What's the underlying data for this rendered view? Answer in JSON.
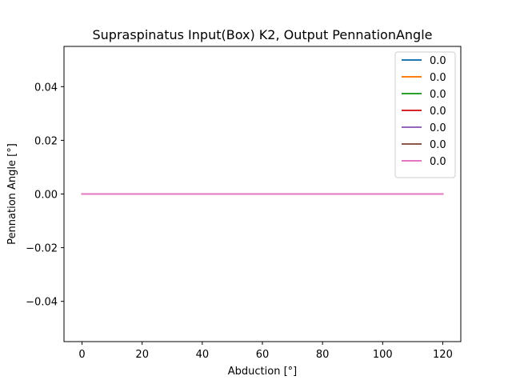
{
  "chart_data": {
    "type": "line",
    "title": "Supraspinatus Input(Box) K2, Output PennationAngle",
    "xlabel": "Abduction [°]",
    "ylabel": "Pennation Angle [°]",
    "xlim": [
      -6,
      126
    ],
    "ylim": [
      -0.055,
      0.055
    ],
    "x_ticks": [
      0,
      20,
      40,
      60,
      80,
      100,
      120
    ],
    "y_ticks": [
      -0.04,
      -0.02,
      0.0,
      0.02,
      0.04
    ],
    "x_tick_labels": [
      "0",
      "20",
      "40",
      "60",
      "80",
      "100",
      "120"
    ],
    "y_tick_labels": [
      "−0.04",
      "−0.02",
      "0.00",
      "0.02",
      "0.04"
    ],
    "grid": false,
    "legend_position": "top-right",
    "series": [
      {
        "name": "0.0",
        "color": "#1f77b4",
        "x": [
          0,
          120
        ],
        "y": [
          0,
          0
        ]
      },
      {
        "name": "0.0",
        "color": "#ff7f0e",
        "x": [
          0,
          120
        ],
        "y": [
          0,
          0
        ]
      },
      {
        "name": "0.0",
        "color": "#2ca02c",
        "x": [
          0,
          120
        ],
        "y": [
          0,
          0
        ]
      },
      {
        "name": "0.0",
        "color": "#d62728",
        "x": [
          0,
          120
        ],
        "y": [
          0,
          0
        ]
      },
      {
        "name": "0.0",
        "color": "#9467bd",
        "x": [
          0,
          120
        ],
        "y": [
          0,
          0
        ]
      },
      {
        "name": "0.0",
        "color": "#8c564b",
        "x": [
          0,
          120
        ],
        "y": [
          0,
          0
        ]
      },
      {
        "name": "0.0",
        "color": "#e377c2",
        "x": [
          0,
          120
        ],
        "y": [
          0,
          0
        ]
      }
    ]
  }
}
